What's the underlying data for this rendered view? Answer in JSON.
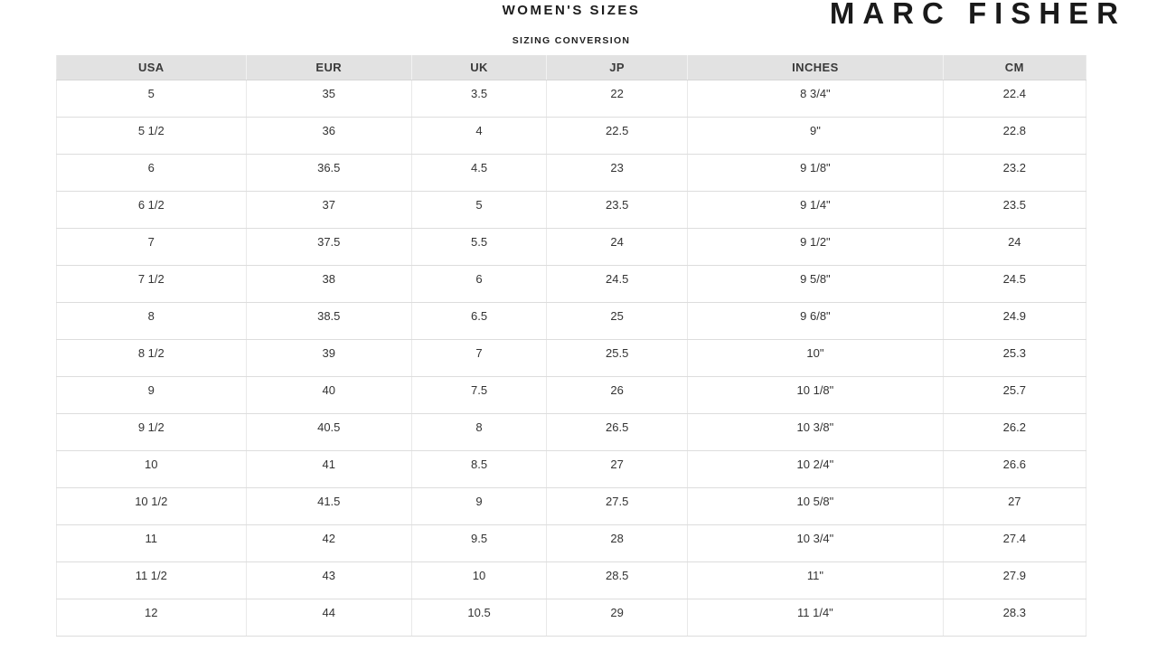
{
  "brand": {
    "logo": "MARC FISHER"
  },
  "header": {
    "title": "WOMEN'S SIZES",
    "subtitle": "SIZING CONVERSION"
  },
  "table": {
    "columns": [
      "USA",
      "EUR",
      "UK",
      "JP",
      "INCHES",
      "CM"
    ],
    "rows": [
      [
        "5",
        "35",
        "3.5",
        "22",
        "8 3/4\"",
        "22.4"
      ],
      [
        "5 1/2",
        "36",
        "4",
        "22.5",
        "9\"",
        "22.8"
      ],
      [
        "6",
        "36.5",
        "4.5",
        "23",
        "9 1/8\"",
        "23.2"
      ],
      [
        "6 1/2",
        "37",
        "5",
        "23.5",
        "9 1/4\"",
        "23.5"
      ],
      [
        "7",
        "37.5",
        "5.5",
        "24",
        "9 1/2\"",
        "24"
      ],
      [
        "7 1/2",
        "38",
        "6",
        "24.5",
        "9 5/8\"",
        "24.5"
      ],
      [
        "8",
        "38.5",
        "6.5",
        "25",
        "9 6/8\"",
        "24.9"
      ],
      [
        "8 1/2",
        "39",
        "7",
        "25.5",
        "10\"",
        "25.3"
      ],
      [
        "9",
        "40",
        "7.5",
        "26",
        "10 1/8\"",
        "25.7"
      ],
      [
        "9 1/2",
        "40.5",
        "8",
        "26.5",
        "10 3/8\"",
        "26.2"
      ],
      [
        "10",
        "41",
        "8.5",
        "27",
        "10 2/4\"",
        "26.6"
      ],
      [
        "10 1/2",
        "41.5",
        "9",
        "27.5",
        "10 5/8\"",
        "27"
      ],
      [
        "11",
        "42",
        "9.5",
        "28",
        "10 3/4\"",
        "27.4"
      ],
      [
        "11 1/2",
        "43",
        "10",
        "28.5",
        "11\"",
        "27.9"
      ],
      [
        "12",
        "44",
        "10.5",
        "29",
        "11 1/4\"",
        "28.3"
      ]
    ]
  },
  "colors": {
    "header_bg": "#e2e2e2",
    "row_border": "#dddddd",
    "text": "#333333",
    "logo_text": "#1a1a1a"
  }
}
